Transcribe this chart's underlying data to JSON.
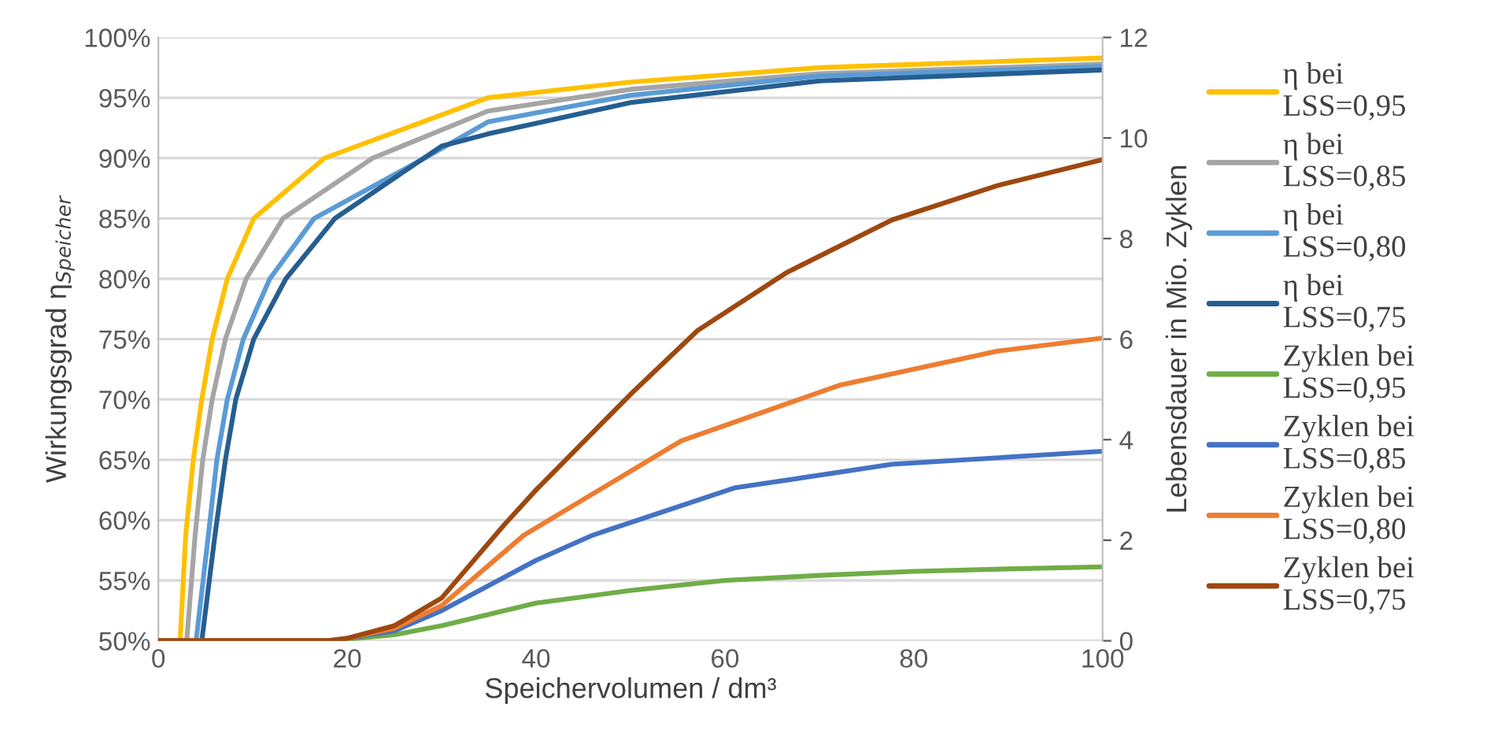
{
  "chart_data": {
    "type": "line",
    "xlabel": "Speichervolumen / dm³",
    "ylabel": "Wirkungsgrad η$_{Speicher}$",
    "y2label": "Lebensdauer in Mio. Zyklen",
    "xlim": [
      0,
      100
    ],
    "xticks": [
      0,
      20,
      40,
      60,
      80,
      100
    ],
    "ylim": [
      50,
      100
    ],
    "yticks": [
      {
        "value": 50,
        "label": "50%"
      },
      {
        "value": 55,
        "label": "55%"
      },
      {
        "value": 60,
        "label": "60%"
      },
      {
        "value": 65,
        "label": "65%"
      },
      {
        "value": 70,
        "label": "70%"
      },
      {
        "value": 75,
        "label": "75%"
      },
      {
        "value": 80,
        "label": "80%"
      },
      {
        "value": 85,
        "label": "85%"
      },
      {
        "value": 90,
        "label": "90%"
      },
      {
        "value": 95,
        "label": "95%"
      },
      {
        "value": 100,
        "label": "100%"
      }
    ],
    "y2lim": [
      0,
      12
    ],
    "y2ticks": [
      0,
      2,
      4,
      6,
      8,
      10,
      12
    ],
    "grid": "y",
    "legend": "right",
    "marker": "none",
    "line_style": "solid",
    "series": [
      {
        "name": "η bei LSS=0,95",
        "color": "#ffc000",
        "x": [
          2.3,
          2.9,
          3.7,
          4.6,
          5.7,
          7.3,
          10.1,
          17.6,
          34.9,
          50,
          70,
          100
        ],
        "values": [
          50,
          58.8,
          65,
          70,
          75,
          80,
          85,
          90,
          95,
          96.3,
          97.5,
          98.3
        ]
      },
      {
        "name": "η bei LSS=0,85",
        "color": "#a5a5a5",
        "x": [
          3.0,
          3.9,
          4.7,
          5.7,
          7.1,
          9.3,
          13.2,
          22.7,
          34.9,
          50,
          70,
          100
        ],
        "values": [
          50,
          58.8,
          65,
          70,
          75,
          80,
          85,
          90,
          93.9,
          95.7,
          97.0,
          97.8
        ]
      },
      {
        "name": "η bei LSS=0,80",
        "color": "#5b9bd5",
        "x": [
          4.0,
          5.3,
          6.2,
          7.3,
          9.0,
          11.8,
          16.5,
          28.2,
          34.9,
          50,
          70,
          100
        ],
        "values": [
          50,
          58.8,
          65,
          70,
          75,
          80,
          85,
          90,
          93.0,
          95.2,
          96.8,
          97.6
        ]
      },
      {
        "name": "η bei LSS=0,75",
        "color": "#255e91",
        "x": [
          4.6,
          6.0,
          7.1,
          8.2,
          10.1,
          13.5,
          18.7,
          30,
          34.9,
          50,
          70,
          100
        ],
        "values": [
          50,
          58.8,
          65,
          70,
          75,
          80,
          85,
          91.0,
          92.0,
          94.6,
          96.4,
          97.3
        ]
      },
      {
        "name": "Zyklen bei LSS=0,95",
        "color": "#70ad47",
        "axis": "y2",
        "x": [
          0,
          18,
          20,
          25,
          30,
          40,
          50,
          60,
          70,
          80,
          90,
          100
        ],
        "values": [
          0,
          0,
          0.03,
          0.12,
          0.3,
          0.75,
          1.0,
          1.2,
          1.3,
          1.38,
          1.43,
          1.47
        ]
      },
      {
        "name": "Zyklen bei LSS=0,85",
        "color": "#4472c4",
        "axis": "y2",
        "x": [
          0,
          18,
          20,
          25,
          30,
          40,
          46,
          61,
          77.7,
          100
        ],
        "values": [
          0,
          0,
          0.05,
          0.2,
          0.6,
          1.6,
          2.1,
          3.04,
          3.51,
          3.77
        ]
      },
      {
        "name": "Zyklen bei LSS=0,80",
        "color": "#ed7d31",
        "axis": "y2",
        "x": [
          0,
          18,
          20,
          25,
          30,
          38.7,
          55.4,
          72.1,
          88.8,
          100
        ],
        "values": [
          0,
          0,
          0.05,
          0.25,
          0.7,
          2.1,
          3.98,
          5.08,
          5.76,
          6.02
        ]
      },
      {
        "name": "Zyklen bei LSS=0,75",
        "color": "#9e480e",
        "axis": "y2",
        "x": [
          0,
          18,
          20,
          25,
          30,
          36.6,
          40,
          50,
          57.1,
          66.6,
          77.7,
          88.8,
          100
        ],
        "values": [
          0,
          0,
          0.05,
          0.3,
          0.85,
          2.3,
          3.0,
          4.9,
          6.17,
          7.33,
          8.37,
          9.05,
          9.57
        ]
      }
    ]
  }
}
